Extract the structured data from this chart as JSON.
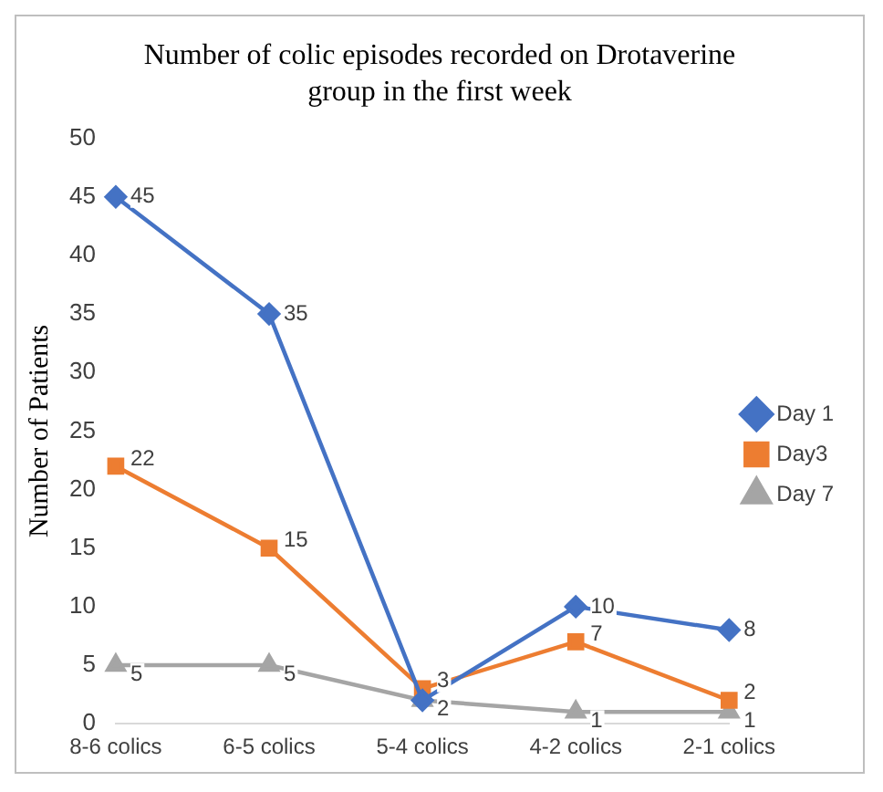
{
  "chart_data": {
    "type": "line",
    "title": "Number of colic episodes recorded on Drotaverine group in the first week",
    "ylabel": "Number of Patients",
    "categories": [
      "8-6 colics",
      "6-5 colics",
      "5-4 colics",
      "4-2 colics",
      "2-1 colics"
    ],
    "ylim": [
      0,
      50
    ],
    "yticks": [
      0,
      5,
      10,
      15,
      20,
      25,
      30,
      35,
      40,
      45,
      50
    ],
    "grid": false,
    "legend": "right",
    "series": [
      {
        "name": "Day 1",
        "color": "#4472c4",
        "marker": "diamond",
        "values": [
          45,
          35,
          2,
          10,
          8
        ],
        "value_labels": [
          "45",
          "35",
          null,
          "10",
          "8"
        ]
      },
      {
        "name": "Day3",
        "color": "#ed7d31",
        "marker": "square",
        "values": [
          22,
          15,
          3,
          7,
          2
        ],
        "value_labels": [
          "22",
          "15",
          "3",
          "7",
          "2"
        ]
      },
      {
        "name": "Day 7",
        "color": "#a5a5a5",
        "marker": "triangle",
        "values": [
          5,
          5,
          2,
          1,
          1
        ],
        "value_labels": [
          "5",
          "5",
          "2",
          "1",
          "1"
        ]
      }
    ]
  }
}
